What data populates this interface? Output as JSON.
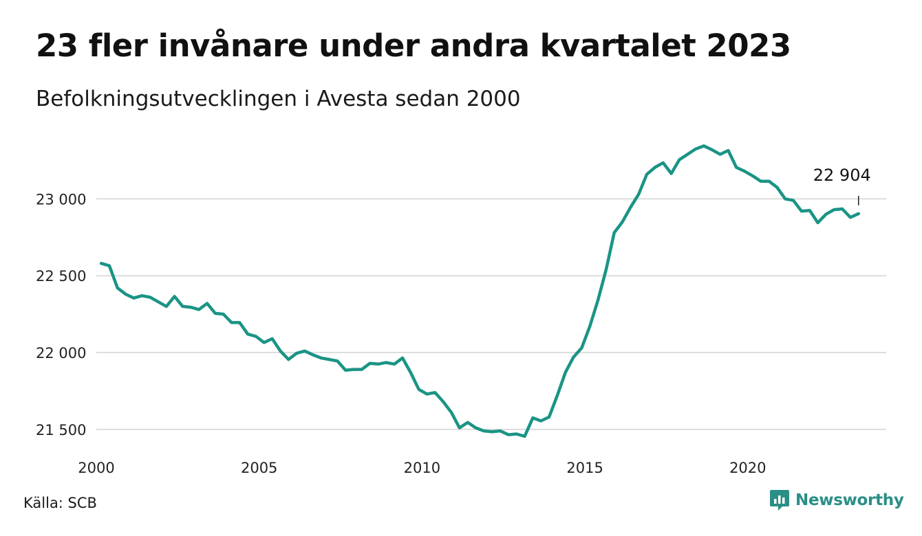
{
  "header": {
    "title": "23 fler invånare under andra kvartalet 2023",
    "subtitle": "Befolkningsutvecklingen i Avesta sedan 2000"
  },
  "footer": {
    "source": "Källa: SCB",
    "brand": "Newsworthy"
  },
  "colors": {
    "line": "#1a9485",
    "grid": "#dddddd",
    "brand": "#2a8f86"
  },
  "chart_data": {
    "type": "line",
    "title": "23 fler invånare under andra kvartalet 2023",
    "subtitle": "Befolkningsutvecklingen i Avesta sedan 2000",
    "xlim": [
      2000,
      2024.25
    ],
    "ylim": [
      21450,
      23400
    ],
    "x_ticks": [
      2000,
      2005,
      2010,
      2015,
      2020
    ],
    "x_tick_labels": [
      "2000",
      "2005",
      "2010",
      "2015",
      "2020"
    ],
    "y_ticks": [
      21500,
      22000,
      22500,
      23000
    ],
    "y_tick_labels": [
      "21 500",
      "22 000",
      "22 500",
      "23 000"
    ],
    "grid": "horizontal",
    "end_label": "22 904",
    "series": [
      {
        "x": [
          2000.15,
          2000.4,
          2000.65,
          2000.9,
          2001.15,
          2001.4,
          2001.65,
          2001.9,
          2002.15,
          2002.4,
          2002.65,
          2002.9,
          2003.15,
          2003.4,
          2003.65,
          2003.9,
          2004.15,
          2004.4,
          2004.65,
          2004.9,
          2005.15,
          2005.4,
          2005.65,
          2005.9,
          2006.15,
          2006.4,
          2006.65,
          2006.9,
          2007.15,
          2007.4,
          2007.65,
          2007.9,
          2008.15,
          2008.4,
          2008.65,
          2008.9,
          2009.15,
          2009.4,
          2009.65,
          2009.9,
          2010.15,
          2010.4,
          2010.65,
          2010.9,
          2011.15,
          2011.4,
          2011.65,
          2011.9,
          2012.15,
          2012.4,
          2012.65,
          2012.9,
          2013.15,
          2013.4,
          2013.65,
          2013.9,
          2014.15,
          2014.4,
          2014.65,
          2014.9,
          2015.15,
          2015.4,
          2015.65,
          2015.9,
          2016.15,
          2016.4,
          2016.65,
          2016.9,
          2017.15,
          2017.4,
          2017.65,
          2017.9,
          2018.15,
          2018.4,
          2018.65,
          2018.9,
          2019.15,
          2019.4,
          2019.65,
          2019.9,
          2020.15,
          2020.4,
          2020.65,
          2020.9,
          2021.15,
          2021.4,
          2021.65,
          2021.9,
          2022.15,
          2022.4,
          2022.65,
          2022.9,
          2023.15,
          2023.4
        ],
        "values": [
          22580,
          22565,
          22420,
          22380,
          22355,
          22370,
          22360,
          22330,
          22300,
          22365,
          22300,
          22295,
          22280,
          22320,
          22255,
          22250,
          22195,
          22195,
          22120,
          22105,
          22065,
          22090,
          22010,
          21955,
          21995,
          22010,
          21985,
          21965,
          21955,
          21945,
          21885,
          21890,
          21890,
          21930,
          21925,
          21935,
          21925,
          21965,
          21870,
          21760,
          21730,
          21740,
          21680,
          21610,
          21510,
          21545,
          21510,
          21490,
          21485,
          21490,
          21465,
          21470,
          21455,
          21575,
          21555,
          21580,
          21720,
          21870,
          21970,
          22030,
          22170,
          22340,
          22540,
          22780,
          22850,
          22945,
          23030,
          23160,
          23205,
          23235,
          23165,
          23255,
          23290,
          23325,
          23345,
          23320,
          23290,
          23315,
          23205,
          23180,
          23150,
          23115,
          23115,
          23075,
          23000,
          22990,
          22920,
          22925,
          22845,
          22900,
          22930,
          22935,
          22880,
          22904
        ]
      }
    ]
  }
}
